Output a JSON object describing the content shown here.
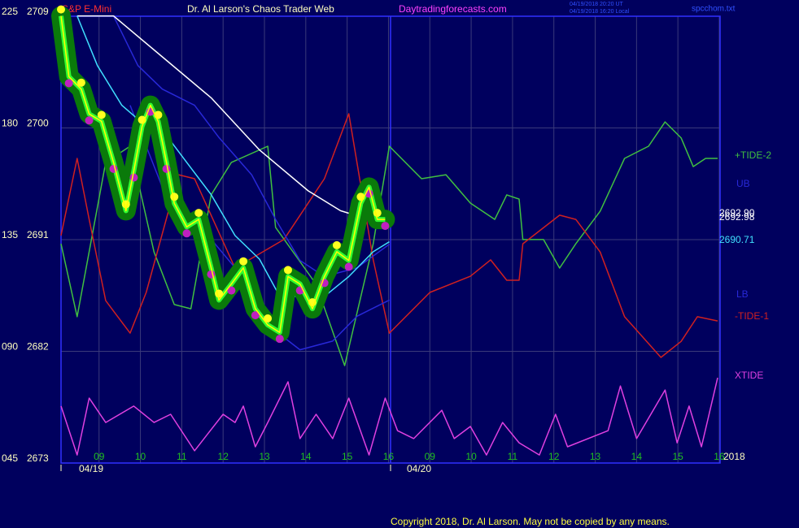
{
  "header": {
    "title": "Dr. Al Larson's Chaos Trader Web",
    "site": "Daytradingforecasts.com",
    "timestamp_ut": "04/19/2018 20:20 UT",
    "timestamp_local": "04/19/2018 16:20 Local",
    "file": "spcchom.txt"
  },
  "copyright": "Copyright 2018, Dr. Al Larson. May not be copied by any means.",
  "chart_data": {
    "type": "line",
    "title": "S&P E-Mini",
    "dates": [
      "04/19",
      "04/20"
    ],
    "year": "2018",
    "xlim": [
      8.08,
      24.02
    ],
    "xticks": [
      {
        "value": 9,
        "label": "09"
      },
      10,
      11,
      12,
      13,
      14,
      15,
      16,
      {
        "value": 17,
        "label": "09"
      },
      {
        "value": 18,
        "label": "10"
      },
      {
        "value": 19,
        "label": "11"
      },
      {
        "value": 20,
        "label": "12"
      },
      {
        "value": 21,
        "label": "13"
      },
      {
        "value": 22,
        "label": "14"
      },
      {
        "value": 23,
        "label": "15"
      },
      {
        "value": 24,
        "label": "16"
      }
    ],
    "ylim": [
      2673,
      2709
    ],
    "yticks": [
      2673,
      2682,
      2691,
      2700,
      2709
    ],
    "y2lim": [
      45,
      225
    ],
    "y2ticks": [
      {
        "value": 45,
        "label": "045"
      },
      {
        "value": 90,
        "label": "090"
      },
      135,
      180,
      225
    ],
    "grid": true,
    "end_labels": [
      {
        "text": "2692.90",
        "color": "#ffffff"
      },
      {
        "text": "2692.98",
        "color": "#ffffff"
      },
      {
        "text": "2690.71",
        "color": "#40e0ff"
      }
    ],
    "series": [
      {
        "name": "+TIDE-2",
        "color": "#40c040",
        "axis": "y2",
        "x": [
          8.08,
          8.47,
          9.16,
          9.75,
          10.33,
          10.82,
          11.22,
          11.71,
          12.2,
          13.08,
          13.27,
          14.25,
          14.94,
          15.63,
          16.02,
          16.8,
          17.39,
          17.98,
          18.57,
          18.86,
          19.16,
          19.25,
          19.75,
          20.14,
          20.53,
          21.12,
          21.71,
          22.29,
          22.69,
          23.08,
          23.37,
          23.67,
          23.96
        ],
        "values": [
          131.7,
          102.3,
          164.5,
          171.0,
          128.4,
          107.2,
          105.5,
          151.4,
          164.5,
          171.0,
          138.3,
          115.4,
          82.6,
          131.7,
          171.0,
          157.9,
          159.5,
          148.1,
          141.5,
          151.4,
          149.7,
          133.4,
          133.4,
          121.9,
          131.7,
          144.8,
          166.1,
          171.0,
          180.8,
          174.3,
          162.8,
          166.1,
          166.1
        ]
      },
      {
        "name": "-TIDE-1",
        "color": "#d02020",
        "axis": "y2",
        "x": [
          8.08,
          8.47,
          8.76,
          9.16,
          9.75,
          10.14,
          10.92,
          11.31,
          12.29,
          13.47,
          14.45,
          15.04,
          15.63,
          16.02,
          17.0,
          17.98,
          18.47,
          18.86,
          19.16,
          19.25,
          20.14,
          20.53,
          21.12,
          21.71,
          22.59,
          23.08,
          23.47,
          23.96
        ],
        "values": [
          135.0,
          166.1,
          141.5,
          108.8,
          95.7,
          112.1,
          159.5,
          157.9,
          121.9,
          133.4,
          157.9,
          184.1,
          125.2,
          95.7,
          112.1,
          118.6,
          125.2,
          117.0,
          117.0,
          131.7,
          143.2,
          141.5,
          128.4,
          102.3,
          85.9,
          92.4,
          102.3,
          100.6
        ]
      },
      {
        "name": "XTIDE",
        "color": "#e040e0",
        "axis": "y2",
        "x": [
          8.08,
          8.47,
          8.76,
          9.16,
          9.84,
          10.33,
          10.73,
          11.31,
          12.0,
          12.29,
          12.49,
          12.78,
          13.08,
          13.57,
          13.86,
          14.25,
          14.65,
          15.04,
          15.53,
          15.92,
          16.22,
          16.61,
          17.29,
          17.59,
          17.98,
          18.37,
          18.76,
          19.16,
          19.65,
          20.04,
          20.33,
          21.31,
          21.61,
          22.0,
          22.69,
          22.98,
          23.27,
          23.57,
          23.96
        ],
        "values": [
          66.3,
          46.6,
          69.5,
          59.7,
          66.3,
          59.7,
          63.0,
          48.3,
          63.0,
          59.7,
          66.3,
          49.9,
          59.7,
          76.1,
          53.2,
          63.0,
          53.2,
          69.5,
          46.6,
          69.5,
          56.4,
          53.2,
          64.6,
          53.2,
          58.1,
          46.6,
          59.7,
          51.5,
          46.6,
          63.0,
          49.9,
          56.4,
          74.4,
          53.2,
          72.8,
          51.5,
          66.3,
          49.9,
          77.7
        ]
      },
      {
        "name": "UB",
        "color": "#2828d8",
        "x": [
          9.35,
          9.94,
          10.53,
          11.31,
          11.9,
          12.69,
          13.27,
          13.86,
          14.45,
          15.24,
          16.02
        ],
        "values": [
          2708.7,
          2704.7,
          2702.8,
          2701.5,
          2698.9,
          2695.9,
          2692.3,
          2689.0,
          2687.7,
          2688.4,
          2690.3
        ]
      },
      {
        "name": "LB",
        "color": "#2828d8",
        "x": [
          9.75,
          10.53,
          11.31,
          12.29,
          13.08,
          13.86,
          14.65,
          15.24,
          16.02
        ],
        "values": [
          2701.5,
          2694.9,
          2692.3,
          2688.4,
          2683.8,
          2681.8,
          2682.5,
          2684.5,
          2685.8
        ]
      },
      {
        "color": "#ffffff",
        "x": [
          8.47,
          9.35,
          10.53,
          11.71,
          12.88,
          14.06,
          14.84,
          15.43,
          16.02
        ],
        "values": [
          2708.7,
          2708.7,
          2705.4,
          2702.1,
          2697.9,
          2694.6,
          2693.0,
          2692.4,
          2692.3
        ]
      },
      {
        "color": "#40e0ff",
        "x": [
          8.47,
          8.96,
          9.55,
          10.14,
          10.53,
          11.12,
          11.71,
          12.29,
          12.88,
          13.37,
          14.45,
          15.04,
          15.63,
          16.02
        ],
        "values": [
          2708.7,
          2704.7,
          2701.5,
          2699.8,
          2699.5,
          2696.9,
          2694.3,
          2691.0,
          2689.1,
          2686.1,
          2686.1,
          2687.7,
          2689.7,
          2690.5
        ]
      },
      {
        "color": "#ffff00",
        "band_color": "#0a7a0a",
        "x": [
          8.08,
          8.27,
          8.57,
          8.76,
          9.06,
          9.35,
          9.65,
          9.84,
          10.04,
          10.24,
          10.43,
          10.63,
          10.82,
          11.12,
          11.41,
          11.71,
          11.9,
          12.2,
          12.49,
          12.78,
          13.08,
          13.37,
          13.57,
          13.86,
          14.16,
          14.45,
          14.75,
          15.04,
          15.33,
          15.53,
          15.73,
          15.92
        ],
        "values": [
          2708.7,
          2703.8,
          2702.8,
          2700.8,
          2700.2,
          2696.9,
          2693.0,
          2696.2,
          2699.8,
          2701.5,
          2700.2,
          2696.9,
          2693.6,
          2691.7,
          2692.3,
          2688.4,
          2685.8,
          2687.1,
          2688.4,
          2685.1,
          2683.8,
          2683.2,
          2687.7,
          2687.1,
          2685.1,
          2687.7,
          2689.7,
          2689.0,
          2693.6,
          2694.9,
          2692.3,
          2692.3
        ]
      }
    ]
  }
}
